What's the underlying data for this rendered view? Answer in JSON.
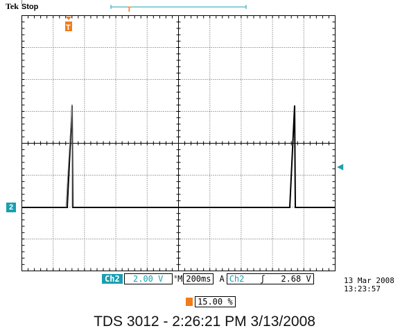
{
  "header": {
    "brand": "Tek",
    "run_state": "Stop"
  },
  "channel_marker": "2",
  "status_bar": {
    "channel": "Ch2",
    "volts_per_div": "2.00 V",
    "bw_symbol": "ᴮ",
    "timebase_prefix": "M",
    "timebase": "200ms",
    "acq_mode": "A",
    "trigger_source": "Ch2",
    "trigger_slope": "ʃ",
    "trigger_level": "2.68 V"
  },
  "trigger_position": "15.00 %",
  "timestamp": {
    "date": "13 Mar 2008",
    "time": "13:23:57"
  },
  "caption": "TDS 3012 - 2:26:21 PM   3/13/2008",
  "colors": {
    "accent": "#1a9fb0",
    "trigger": "#f07d1a",
    "trace": "#000000",
    "grid": "#000000"
  }
}
